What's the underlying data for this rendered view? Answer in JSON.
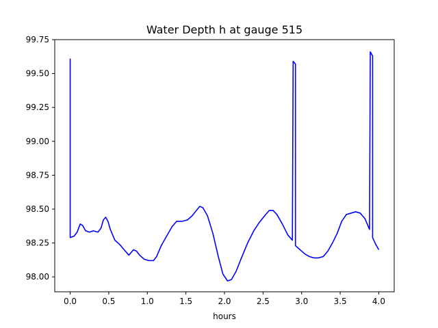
{
  "chart_data": {
    "type": "line",
    "title": "Water Depth h at gauge 515",
    "xlabel": "hours",
    "ylabel": "",
    "xlim": [
      -0.2,
      4.2
    ],
    "ylim": [
      97.89,
      99.75
    ],
    "xticks": [
      0.0,
      0.5,
      1.0,
      1.5,
      2.0,
      2.5,
      3.0,
      3.5,
      4.0
    ],
    "xtick_labels": [
      "0.0",
      "0.5",
      "1.0",
      "1.5",
      "2.0",
      "2.5",
      "3.0",
      "3.5",
      "4.0"
    ],
    "yticks": [
      98.0,
      98.25,
      98.5,
      98.75,
      99.0,
      99.25,
      99.5,
      99.75
    ],
    "ytick_labels": [
      "98.00",
      "98.25",
      "98.50",
      "98.75",
      "99.00",
      "99.25",
      "99.50",
      "99.75"
    ],
    "grid": false,
    "legend": "none",
    "series": [
      {
        "color": "#0000ff",
        "points": [
          [
            0.0,
            99.61
          ],
          [
            0.0,
            98.29
          ],
          [
            0.05,
            98.3
          ],
          [
            0.09,
            98.33
          ],
          [
            0.13,
            98.39
          ],
          [
            0.16,
            98.38
          ],
          [
            0.2,
            98.34
          ],
          [
            0.25,
            98.33
          ],
          [
            0.3,
            98.34
          ],
          [
            0.36,
            98.33
          ],
          [
            0.4,
            98.36
          ],
          [
            0.43,
            98.42
          ],
          [
            0.46,
            98.44
          ],
          [
            0.49,
            98.41
          ],
          [
            0.52,
            98.35
          ],
          [
            0.58,
            98.27
          ],
          [
            0.64,
            98.24
          ],
          [
            0.7,
            98.2
          ],
          [
            0.76,
            98.16
          ],
          [
            0.79,
            98.18
          ],
          [
            0.82,
            98.2
          ],
          [
            0.86,
            98.19
          ],
          [
            0.9,
            98.16
          ],
          [
            0.96,
            98.13
          ],
          [
            1.02,
            98.12
          ],
          [
            1.08,
            98.12
          ],
          [
            1.12,
            98.15
          ],
          [
            1.18,
            98.23
          ],
          [
            1.25,
            98.3
          ],
          [
            1.32,
            98.37
          ],
          [
            1.38,
            98.41
          ],
          [
            1.45,
            98.41
          ],
          [
            1.52,
            98.42
          ],
          [
            1.58,
            98.45
          ],
          [
            1.65,
            98.5
          ],
          [
            1.68,
            98.52
          ],
          [
            1.72,
            98.51
          ],
          [
            1.78,
            98.45
          ],
          [
            1.85,
            98.32
          ],
          [
            1.92,
            98.15
          ],
          [
            1.98,
            98.02
          ],
          [
            2.04,
            97.97
          ],
          [
            2.09,
            97.98
          ],
          [
            2.15,
            98.04
          ],
          [
            2.22,
            98.14
          ],
          [
            2.3,
            98.25
          ],
          [
            2.38,
            98.34
          ],
          [
            2.45,
            98.4
          ],
          [
            2.52,
            98.45
          ],
          [
            2.58,
            98.49
          ],
          [
            2.63,
            98.49
          ],
          [
            2.68,
            98.46
          ],
          [
            2.75,
            98.39
          ],
          [
            2.82,
            98.31
          ],
          [
            2.88,
            98.27
          ],
          [
            2.89,
            99.59
          ],
          [
            2.92,
            99.57
          ],
          [
            2.92,
            98.23
          ],
          [
            2.98,
            98.2
          ],
          [
            3.04,
            98.17
          ],
          [
            3.1,
            98.15
          ],
          [
            3.16,
            98.14
          ],
          [
            3.22,
            98.14
          ],
          [
            3.28,
            98.15
          ],
          [
            3.34,
            98.19
          ],
          [
            3.4,
            98.25
          ],
          [
            3.46,
            98.32
          ],
          [
            3.52,
            98.41
          ],
          [
            3.58,
            98.46
          ],
          [
            3.64,
            98.47
          ],
          [
            3.7,
            98.48
          ],
          [
            3.76,
            98.47
          ],
          [
            3.82,
            98.43
          ],
          [
            3.88,
            98.35
          ],
          [
            3.89,
            99.66
          ],
          [
            3.92,
            99.63
          ],
          [
            3.92,
            98.29
          ],
          [
            3.96,
            98.24
          ],
          [
            4.0,
            98.2
          ]
        ]
      }
    ]
  }
}
